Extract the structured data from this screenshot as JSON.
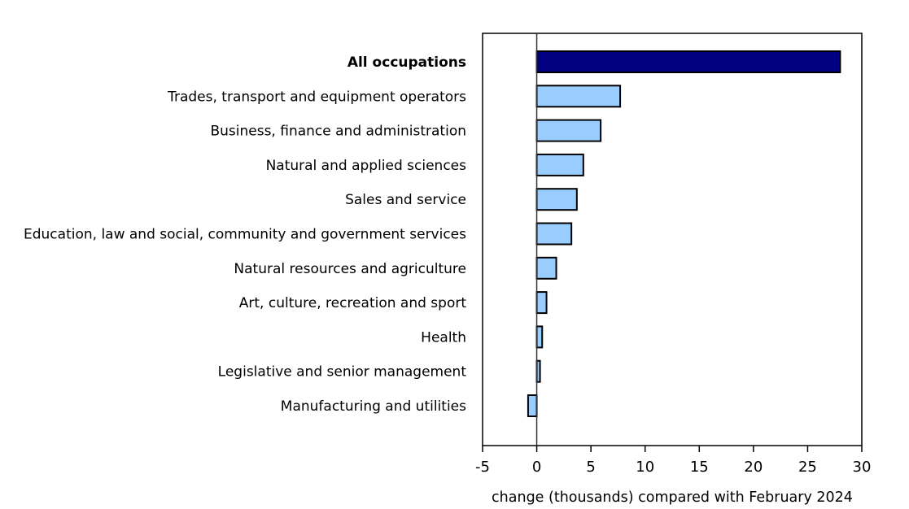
{
  "chart_data": {
    "type": "bar",
    "orientation": "horizontal",
    "categories": [
      "All occupations",
      "Trades, transport and equipment operators",
      "Business, finance and administration",
      "Natural and applied sciences",
      "Sales and service",
      "Education, law and social, community and government services",
      "Natural resources and agriculture",
      "Art, culture, recreation and sport",
      "Health",
      "Legislative and senior management",
      "Manufacturing and utilities"
    ],
    "values": [
      28.0,
      7.7,
      5.9,
      4.3,
      3.7,
      3.2,
      1.8,
      0.9,
      0.5,
      0.3,
      -0.8
    ],
    "highlight_category": "All occupations",
    "title": "",
    "xlabel": "change (thousands) compared with February 2024",
    "ylabel": "",
    "xlim": [
      -5,
      30
    ],
    "xticks": [
      -5,
      0,
      5,
      10,
      15,
      20,
      25,
      30
    ],
    "grid": false,
    "colors": {
      "highlight": "#000080",
      "bar": "#99ccff",
      "outline": "#000000"
    }
  }
}
